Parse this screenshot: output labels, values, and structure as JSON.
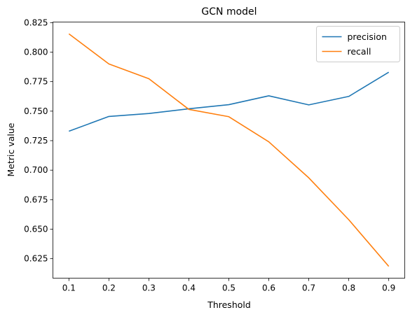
{
  "chart_data": {
    "type": "line",
    "title": "GCN model",
    "xlabel": "Threshold",
    "ylabel": "Metric value",
    "x": [
      0.1,
      0.2,
      0.3,
      0.4,
      0.5,
      0.6,
      0.7,
      0.8,
      0.9
    ],
    "xticks": [
      "0.1",
      "0.2",
      "0.3",
      "0.4",
      "0.5",
      "0.6",
      "0.7",
      "0.8",
      "0.9"
    ],
    "yticks": [
      "0.625",
      "0.650",
      "0.675",
      "0.700",
      "0.725",
      "0.750",
      "0.775",
      "0.800",
      "0.825"
    ],
    "xlim": [
      0.06,
      0.94
    ],
    "ylim": [
      0.6085,
      0.8255
    ],
    "legend_position": "top-right",
    "grid": false,
    "series": [
      {
        "name": "precision",
        "color": "#1f77b4",
        "values": [
          0.733,
          0.7455,
          0.748,
          0.752,
          0.7555,
          0.763,
          0.7553,
          0.7625,
          0.783
        ]
      },
      {
        "name": "recall",
        "color": "#ff7f0e",
        "values": [
          0.8155,
          0.79,
          0.7775,
          0.7515,
          0.7453,
          0.724,
          0.6935,
          0.658,
          0.6185
        ]
      }
    ]
  }
}
